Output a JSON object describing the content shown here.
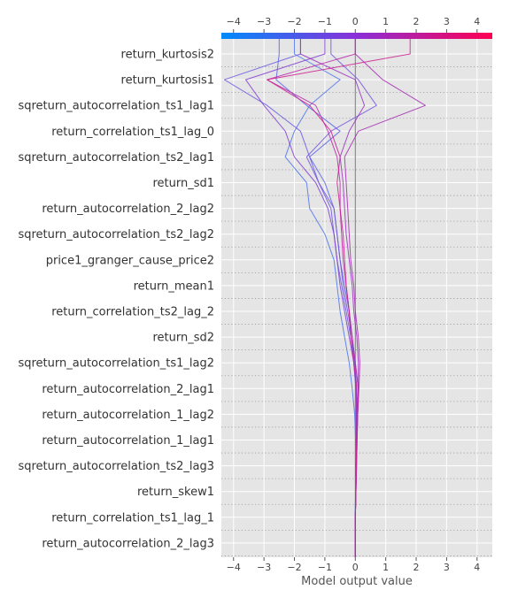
{
  "chart_data": {
    "type": "line",
    "chart_kind": "shap decision plot",
    "xlabel": "Model output value",
    "xlim": [
      -4.4,
      4.5
    ],
    "xticks": [
      -4,
      -3,
      -2,
      -1,
      0,
      1,
      2,
      3,
      4
    ],
    "base_value": 0,
    "grid": true,
    "colorbar": {
      "position": "top",
      "colors": [
        "#008bfb",
        "#8a2fd8",
        "#ff0051"
      ],
      "range": [
        -4.4,
        4.5
      ]
    },
    "features": [
      "return_kurtosis2",
      "return_kurtosis1",
      "sqreturn_autocorrelation_ts1_lag1",
      "return_correlation_ts1_lag_0",
      "sqreturn_autocorrelation_ts2_lag1",
      "return_sd1",
      "return_autocorrelation_2_lag2",
      "sqreturn_autocorrelation_ts2_lag2",
      "price1_granger_cause_price2",
      "return_mean1",
      "return_correlation_ts2_lag_2",
      "return_sd2",
      "sqreturn_autocorrelation_ts1_lag2",
      "return_autocorrelation_2_lag1",
      "return_autocorrelation_1_lag2",
      "return_autocorrelation_1_lag1",
      "sqreturn_autocorrelation_ts2_lag3",
      "return_skew1",
      "return_correlation_ts1_lag_1",
      "return_autocorrelation_2_lag3"
    ],
    "series": [
      {
        "color": "#5a63e8",
        "values": [
          0,
          0,
          0,
          0.01,
          0.02,
          0.02,
          0.03,
          0.02,
          -0.05,
          -0.1,
          -0.2,
          -0.35,
          -0.5,
          -0.6,
          -0.7,
          -1.0,
          -1.5,
          -0.5,
          -1.6,
          -2.6,
          -2.5
        ]
      },
      {
        "color": "#4e73ec",
        "values": [
          0,
          0,
          0,
          0.01,
          0.02,
          0.01,
          -0.02,
          -0.1,
          -0.2,
          -0.35,
          -0.5,
          -0.6,
          -0.7,
          -1.0,
          -1.5,
          -1.6,
          -2.3,
          -2.0,
          -1.5,
          -0.5,
          -2.0
        ]
      },
      {
        "color": "#6a5ae2",
        "values": [
          0,
          0,
          0,
          0.01,
          0.02,
          0.02,
          0.03,
          0.05,
          -0.02,
          -0.15,
          -0.3,
          -0.45,
          -0.6,
          -0.7,
          -0.8,
          -1.2,
          -1.5,
          -1.8,
          -2.9,
          -4.3,
          -1.8
        ]
      },
      {
        "color": "#7555dd",
        "values": [
          0,
          0,
          0,
          0.02,
          0.03,
          0.04,
          0.05,
          0.1,
          0.0,
          -0.1,
          -0.25,
          -0.4,
          -0.5,
          -0.6,
          -0.7,
          -1.2,
          -1.6,
          -0.8,
          0.7,
          0.1,
          -0.8
        ]
      },
      {
        "color": "#8040d4",
        "values": [
          0,
          0,
          0,
          0.02,
          0.03,
          0.04,
          0.05,
          0.02,
          -0.05,
          -0.2,
          -0.35,
          -0.5,
          -0.6,
          -0.7,
          -0.9,
          -1.3,
          -2.0,
          -2.3,
          -3.0,
          -3.6,
          -1.0
        ]
      },
      {
        "color": "#9932c0",
        "values": [
          0,
          0,
          0,
          0.02,
          0.03,
          0.05,
          0.08,
          0.1,
          0.1,
          0.05,
          -0.05,
          -0.1,
          -0.2,
          -0.3,
          -0.35,
          -0.4,
          -0.5,
          -0.2,
          0.3,
          0.0,
          -1.8
        ]
      },
      {
        "color": "#a62bb5",
        "values": [
          0,
          0,
          0,
          0.02,
          0.04,
          0.06,
          0.08,
          0.12,
          0.15,
          0.1,
          0.0,
          -0.05,
          -0.15,
          -0.2,
          -0.25,
          -0.3,
          -0.35,
          0.1,
          2.3,
          0.9,
          0.0
        ]
      },
      {
        "color": "#b82aa8",
        "values": [
          0,
          0,
          0,
          0.02,
          0.04,
          0.06,
          0.08,
          0.1,
          0.0,
          -0.1,
          -0.2,
          -0.3,
          -0.4,
          -0.45,
          -0.5,
          -0.5,
          -0.6,
          -0.9,
          -1.3,
          -2.9,
          0.0
        ]
      },
      {
        "color": "#cc1e90",
        "values": [
          0,
          0,
          0,
          0.02,
          0.03,
          0.04,
          0.05,
          0.05,
          -0.05,
          -0.15,
          -0.2,
          -0.3,
          -0.35,
          -0.4,
          -0.5,
          -0.6,
          -0.5,
          -0.8,
          -1.5,
          -2.9,
          1.8
        ]
      }
    ]
  }
}
